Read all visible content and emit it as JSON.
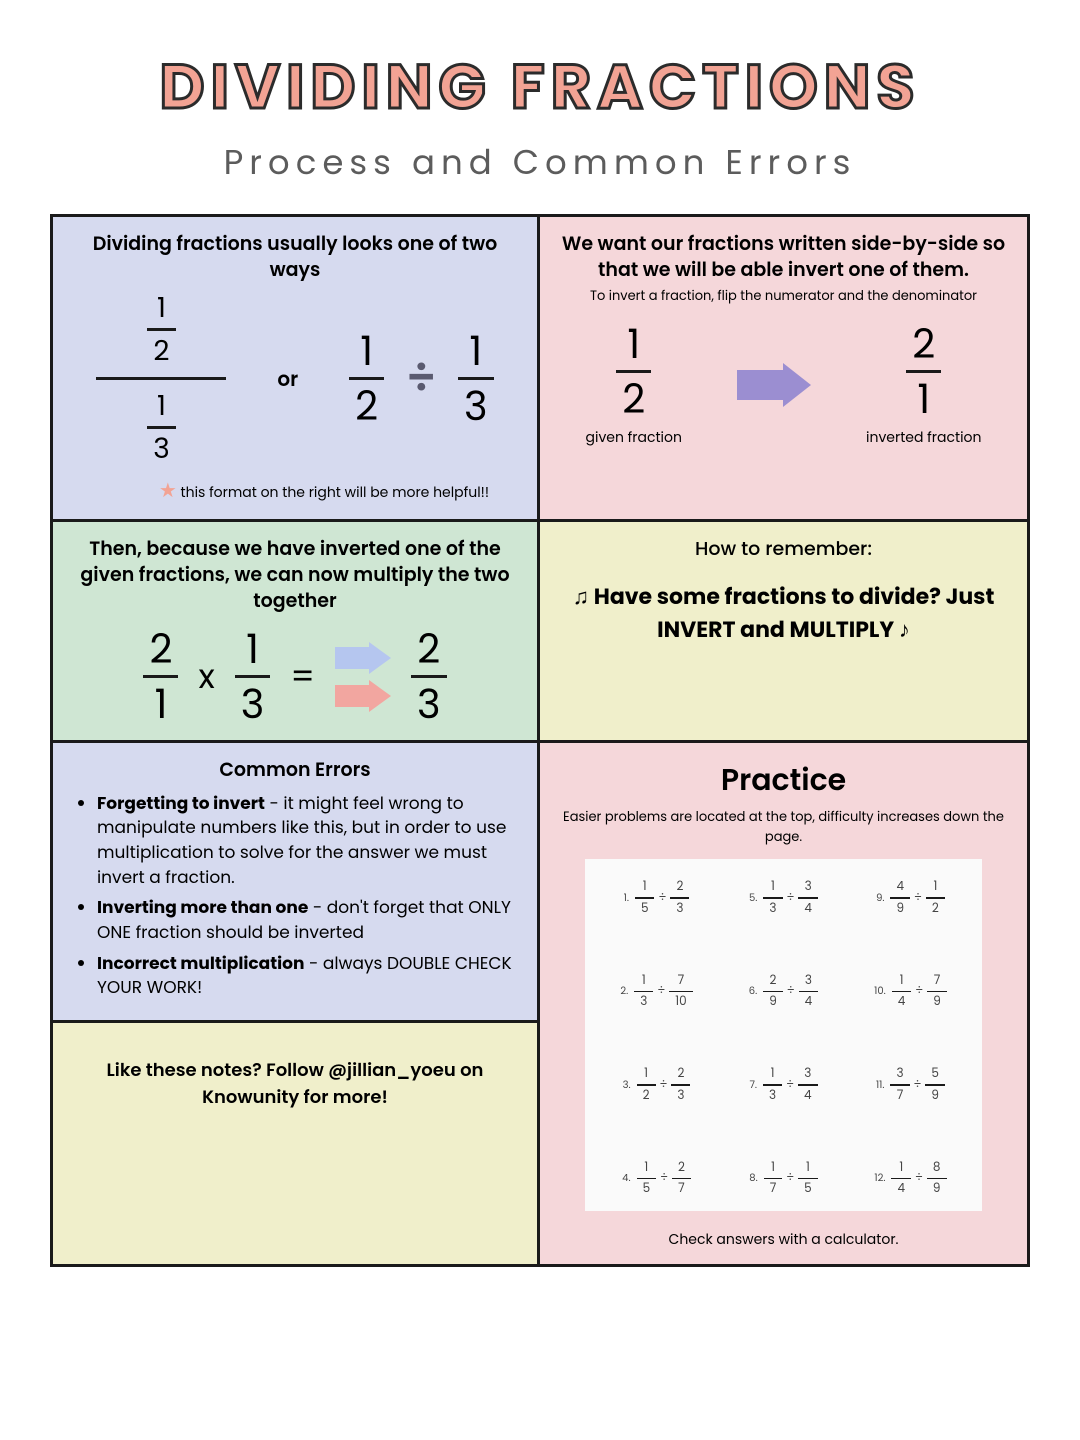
{
  "title": "DIVIDING FRACTIONS",
  "subtitle": "Process and Common Errors",
  "colors": {
    "accent": "#f2a394",
    "stroke": "#2b2b2b",
    "purple_cell": "#d6daef",
    "pink_cell": "#f5d7da",
    "green_cell": "#cfe6d3",
    "yellow_cell": "#f0efcb",
    "arrow_purple": "#9b8ed1",
    "arrow_blue": "#b5c6ef",
    "arrow_pink": "#f2a6a0"
  },
  "cell1": {
    "heading": "Dividing fractions usually looks one of two ways",
    "or": "or",
    "stack_top_num": "1",
    "stack_top_den": "2",
    "stack_bot_num": "1",
    "stack_bot_den": "3",
    "frac_a_num": "1",
    "frac_a_den": "2",
    "frac_b_num": "1",
    "frac_b_den": "3",
    "note": "this format on the right will be more helpful!!"
  },
  "cell2": {
    "heading": "We want our fractions written side-by-side so that we will be able invert one of them.",
    "sub": "To invert a fraction, flip the numerator and the denominator",
    "given_num": "1",
    "given_den": "2",
    "inv_num": "2",
    "inv_den": "1",
    "label_left": "given fraction",
    "label_right": "inverted fraction"
  },
  "cell3": {
    "heading": "Then, because we have inverted one of the given fractions, we can now multiply the two together",
    "a_num": "2",
    "a_den": "1",
    "b_num": "1",
    "b_den": "3",
    "times": "x",
    "eq": "=",
    "r_num": "2",
    "r_den": "3"
  },
  "cell4": {
    "heading": "How to remember:",
    "text": "Have some fractions to divide? Just INVERT and MULTIPLY"
  },
  "cell5": {
    "heading": "Common Errors",
    "items": [
      {
        "bold": "Forgetting to invert",
        "rest": " - it might feel wrong to manipulate numbers like this, but in order to use multiplication to solve for the answer we must invert a fraction."
      },
      {
        "bold": "Inverting more than one",
        "rest": " - don't forget that ONLY ONE fraction should be inverted"
      },
      {
        "bold": "Incorrect multiplication",
        "rest": " - always DOUBLE CHECK YOUR WORK!"
      }
    ]
  },
  "cell6": {
    "heading": "Practice",
    "sub": "Easier problems are located at the top, difficulty increases down the page.",
    "problems": [
      {
        "n": "1.",
        "a": "1",
        "b": "5",
        "c": "2",
        "d": "3"
      },
      {
        "n": "5.",
        "a": "1",
        "b": "3",
        "c": "3",
        "d": "4"
      },
      {
        "n": "9.",
        "a": "4",
        "b": "9",
        "c": "1",
        "d": "2"
      },
      {
        "n": "2.",
        "a": "1",
        "b": "3",
        "c": "7",
        "d": "10"
      },
      {
        "n": "6.",
        "a": "2",
        "b": "9",
        "c": "3",
        "d": "4"
      },
      {
        "n": "10.",
        "a": "1",
        "b": "4",
        "c": "7",
        "d": "9"
      },
      {
        "n": "3.",
        "a": "1",
        "b": "2",
        "c": "2",
        "d": "3"
      },
      {
        "n": "7.",
        "a": "1",
        "b": "3",
        "c": "3",
        "d": "4"
      },
      {
        "n": "11.",
        "a": "3",
        "b": "7",
        "c": "5",
        "d": "9"
      },
      {
        "n": "4.",
        "a": "1",
        "b": "5",
        "c": "2",
        "d": "7"
      },
      {
        "n": "8.",
        "a": "1",
        "b": "7",
        "c": "1",
        "d": "5"
      },
      {
        "n": "12.",
        "a": "1",
        "b": "4",
        "c": "8",
        "d": "9"
      }
    ],
    "check": "Check answers with a calculator."
  },
  "cell7": {
    "text": "Like these notes? Follow @jillian_yoeu on Knowunity for more!"
  }
}
